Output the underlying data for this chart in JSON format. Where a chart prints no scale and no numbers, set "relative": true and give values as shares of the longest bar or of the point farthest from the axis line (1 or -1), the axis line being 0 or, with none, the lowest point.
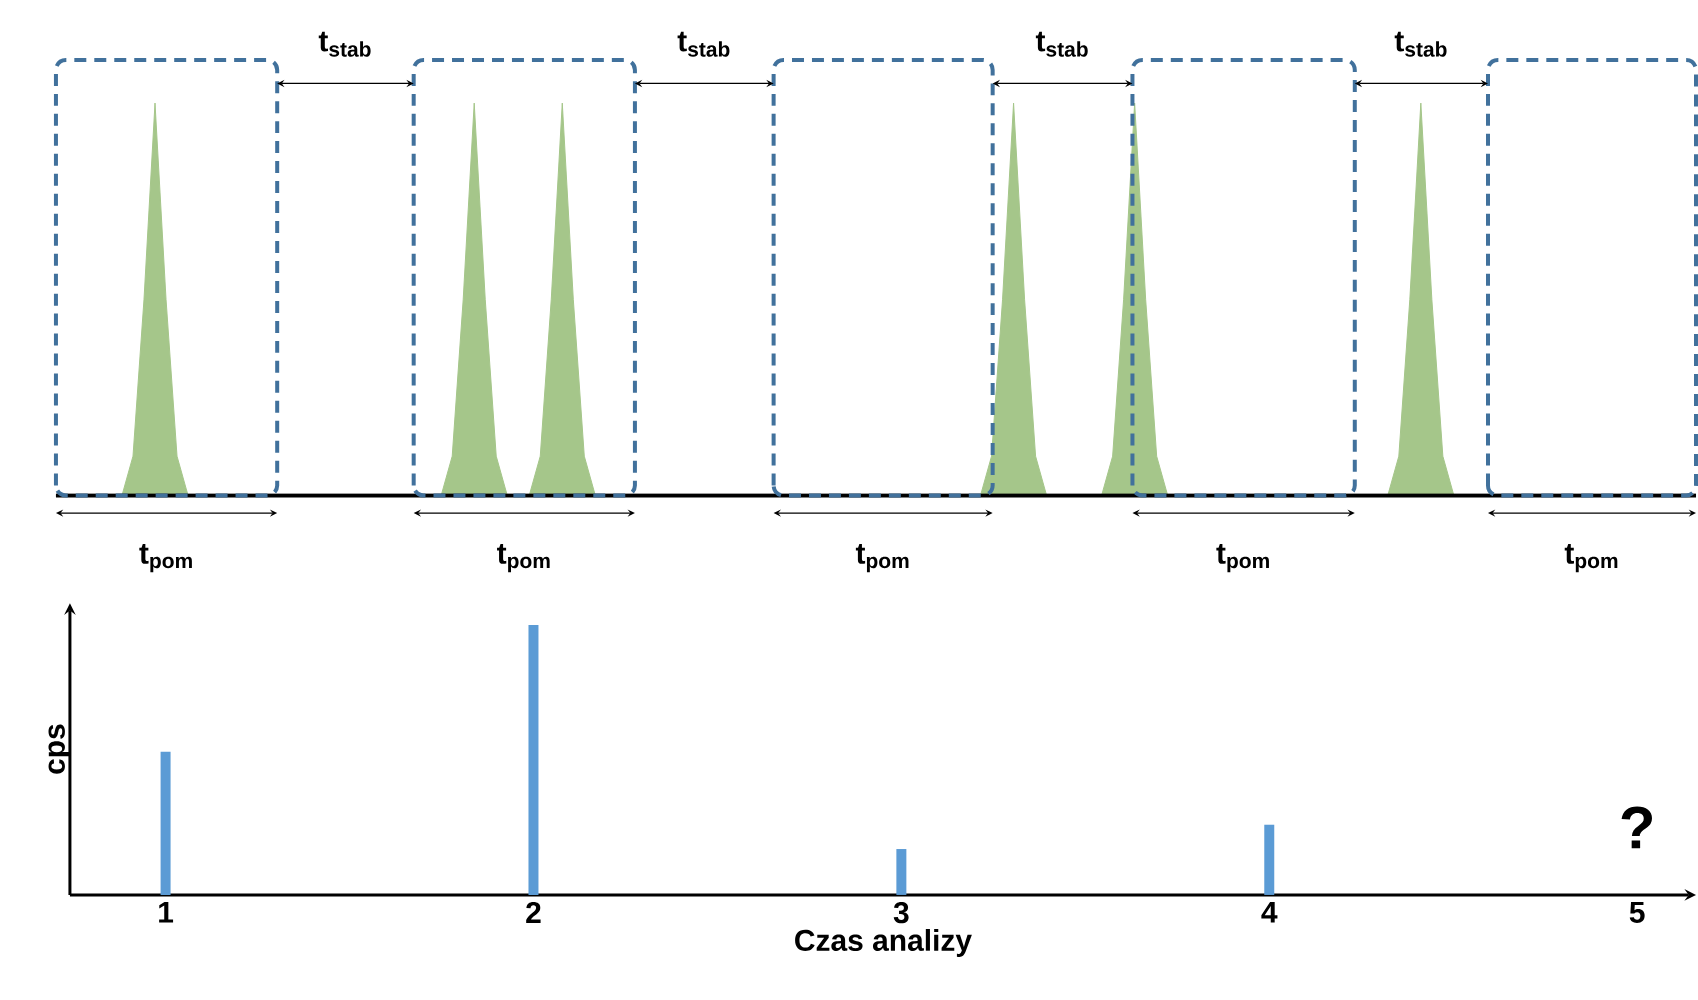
{
  "chart_data": [
    {
      "type": "area",
      "relative": true,
      "color": "#a5c68a",
      "categories": [
        null,
        null,
        null,
        null,
        null,
        null,
        null,
        null,
        null,
        null,
        null,
        null,
        null,
        null,
        null,
        null,
        null,
        null,
        null,
        null,
        null,
        null,
        null,
        null,
        null,
        null,
        null,
        null,
        null,
        null,
        null,
        null,
        null,
        null,
        null,
        null,
        null,
        null,
        null,
        null,
        null,
        null,
        null,
        null,
        null,
        null,
        null,
        null,
        null,
        null,
        null,
        null,
        null,
        null,
        null,
        null,
        null,
        null,
        null,
        null,
        null,
        null,
        null,
        null,
        null,
        null,
        null,
        null,
        null,
        null,
        null,
        null,
        null,
        null,
        null,
        null,
        null,
        null,
        null,
        null,
        null,
        null,
        null,
        null,
        null,
        null,
        null,
        null,
        null,
        null,
        null,
        null,
        null,
        null,
        null,
        null,
        null,
        null,
        null,
        null,
        null,
        null,
        null,
        null,
        null,
        null,
        null,
        null,
        null,
        null,
        null,
        null,
        null,
        null,
        null,
        null,
        null,
        null,
        null,
        null,
        null,
        null,
        null,
        null,
        null,
        null,
        null,
        null,
        null,
        null,
        null,
        null,
        null,
        null,
        null,
        null,
        null,
        null,
        null,
        null,
        null,
        null,
        null,
        null,
        null,
        null,
        null,
        null,
        null,
        null
      ],
      "values": [
        0,
        0,
        0,
        0,
        0,
        0,
        0,
        0.1,
        0.5,
        1,
        0.5,
        0.1,
        0,
        0,
        0,
        0,
        0,
        0,
        0,
        0,
        0,
        0,
        0,
        0,
        0,
        0,
        0,
        0,
        0,
        0,
        0,
        0,
        0,
        0,
        0,
        0,
        0.1,
        0.5,
        1,
        0.5,
        0.1,
        0,
        0,
        0,
        0.1,
        0.5,
        1,
        0.5,
        0.1,
        0,
        0,
        0,
        0,
        0,
        0,
        0,
        0,
        0,
        0,
        0,
        0,
        0,
        0,
        0,
        0,
        0,
        0,
        0,
        0,
        0,
        0,
        0,
        0,
        0,
        0,
        0,
        0,
        0,
        0,
        0,
        0,
        0,
        0,
        0,
        0,
        0.1,
        0.5,
        1,
        0.5,
        0.1,
        0,
        0,
        0,
        0,
        0,
        0,
        0.1,
        0.5,
        1,
        0.5,
        0.1,
        0,
        0,
        0,
        0,
        0,
        0,
        0,
        0,
        0,
        0,
        0,
        0,
        0,
        0,
        0,
        0,
        0,
        0,
        0,
        0,
        0,
        0.1,
        0.5,
        1,
        0.5,
        0.1,
        0,
        0,
        0,
        0,
        0,
        0,
        0,
        0,
        0,
        0,
        0,
        0,
        0,
        0,
        0,
        0,
        0,
        0,
        0,
        0,
        0,
        0,
        0
      ],
      "annotations": [
        "t$_{stab}$",
        "t$_{stab}$",
        "t$_{stab}$",
        "t$_{stab}$",
        "t$_{pom}$",
        "t$_{pom}$",
        "t$_{pom}$",
        "t$_{pom}$",
        "t$_{pom}$"
      ]
    },
    {
      "type": "bar",
      "relative": true,
      "color": "#5b9bd5",
      "xlabel": "Czas analizy",
      "ylabel": "cps",
      "categories": [
        "1",
        "2",
        "3",
        "4",
        "5"
      ],
      "values": [
        0.53,
        1,
        0.17,
        0.26,
        null
      ],
      "annotations": [
        "?"
      ]
    }
  ]
}
